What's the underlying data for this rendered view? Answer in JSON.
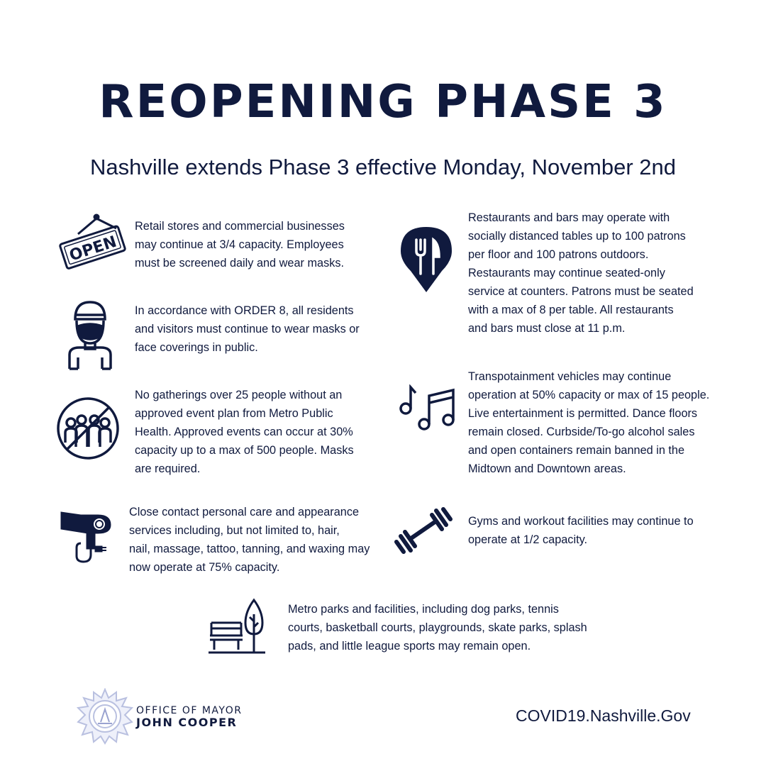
{
  "header": {
    "title": "REOPENING PHASE 3",
    "subtitle": "Nashville extends Phase 3 effective Monday, November 2nd"
  },
  "items": [
    {
      "icon": "open-sign-icon",
      "lines": [
        "Retail stores and commercial businesses",
        "may continue at 3/4 capacity. Employees",
        "must be screened daily and wear masks."
      ],
      "sign_text": "OPEN"
    },
    {
      "icon": "masked-person-icon",
      "lines": [
        "In accordance with ORDER 8, all residents",
        "and visitors must continue to wear masks or",
        "face coverings in public."
      ]
    },
    {
      "icon": "no-gatherings-icon",
      "lines": [
        "No gatherings over 25 people without an",
        "approved event plan from Metro Public",
        "Health. Approved events can occur at 30%",
        "capacity up to a max of 500 people. Masks",
        "are required."
      ]
    },
    {
      "icon": "hair-dryer-icon",
      "lines": [
        "Close contact personal care and appearance",
        "services including, but not limited to, hair,",
        "nail, massage, tattoo, tanning, and waxing may",
        "now operate at 75% capacity."
      ]
    },
    {
      "icon": "restaurant-pin-icon",
      "lines": [
        "Restaurants and bars may operate with",
        "socially distanced tables up to 100 patrons",
        "per floor and 100 patrons outdoors.",
        "Restaurants may continue seated-only",
        "service at counters. Patrons must be seated",
        "with a max of 8 per table. All restaurants",
        "and bars must close at 11 p.m."
      ]
    },
    {
      "icon": "music-notes-icon",
      "lines": [
        "Transpotainment vehicles may continue",
        "operation at 50% capacity or max of 15 people.",
        "Live entertainment is permitted. Dance floors",
        "remain closed. Curbside/To-go alcohol sales",
        "and open containers remain banned in the",
        "Midtown and Downtown areas."
      ]
    },
    {
      "icon": "dumbbell-icon",
      "lines": [
        "Gyms and workout facilities may continue to",
        "operate at 1/2 capacity."
      ]
    },
    {
      "icon": "park-bench-tree-icon",
      "lines": [
        "Metro parks and facilities, including dog parks, tennis",
        "courts, basketball courts, playgrounds, skate parks, splash",
        "pads, and little league sports may remain open."
      ]
    }
  ],
  "footer": {
    "office_line1": "OFFICE OF MAYOR",
    "office_line2": "JOHN COOPER",
    "url": "COVID19.Nashville.Gov",
    "seal_icon": "metro-nashville-seal-icon"
  },
  "colors": {
    "navy": "#101a3e",
    "seal": "#b9c0e0",
    "background": "#ffffff"
  }
}
